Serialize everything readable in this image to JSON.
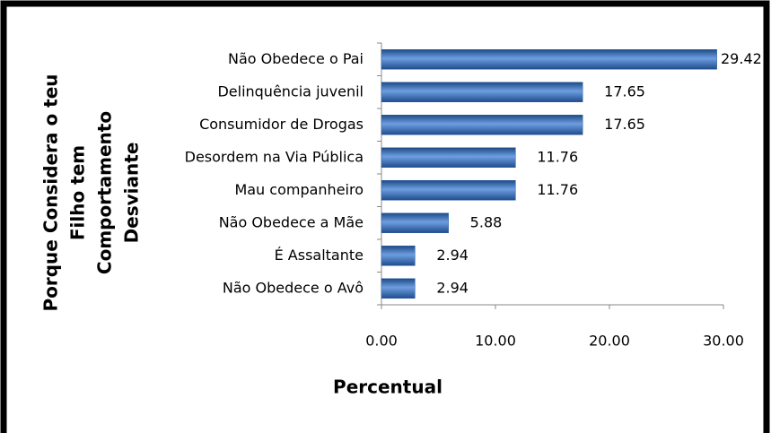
{
  "chart_data": {
    "type": "bar",
    "orientation": "horizontal",
    "ylabel": [
      "Porque Considera o teu",
      "Filho tem",
      "Comportamento",
      "Desviante"
    ],
    "xlabel": "Percentual",
    "categories": [
      "Não Obedece o Pai",
      "Delinquência juvenil",
      "Consumidor de Drogas",
      "Desordem na Via Pública",
      "Mau companheiro",
      "Não Obedece a Mãe",
      "É Assaltante",
      "Não Obedece o Avô"
    ],
    "values": [
      29.42,
      17.65,
      17.65,
      11.76,
      11.76,
      5.88,
      2.94,
      2.94
    ],
    "color": "#2e5fa3",
    "xlim": [
      0,
      30
    ],
    "xticks": [
      {
        "value": 0,
        "label": "0.00"
      },
      {
        "value": 10,
        "label": "10.00"
      },
      {
        "value": 20,
        "label": "20.00"
      },
      {
        "value": 30,
        "label": "30.00"
      }
    ]
  }
}
